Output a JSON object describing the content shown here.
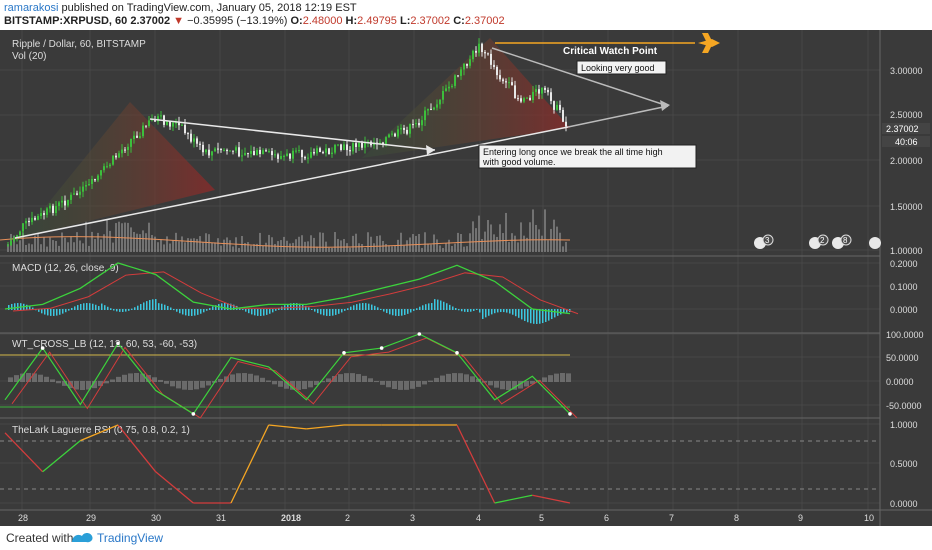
{
  "header": {
    "username": "ramarakosi",
    "published": "published on TradingView.com, January 05, 2018 12:19 EST",
    "symbol": "BITSTAMP:XRPUSD, 60",
    "last": "2.37002",
    "change": "−0.35995 (−13.19%)",
    "o_label": "O:",
    "o_val": "2.48000",
    "h_label": "H:",
    "h_val": "2.49795",
    "l_label": "L:",
    "l_val": "2.37002",
    "c_label": "C:",
    "c_val": "2.37002"
  },
  "pane_titles": {
    "main": "Ripple / Dollar, 60, BITSTAMP",
    "vol": "Vol (20)",
    "macd": "MACD (12, 26, close, 9)",
    "wt": "WT_CROSS_LB (12, 12, 60, 53, -60, -53)",
    "rsi": "TheLark Laguerre RSI (0.75, 0.8, 0.2, 1)"
  },
  "price_scale": {
    "ticks": [
      "3.00000",
      "2.50000",
      "2.00000",
      "1.50000",
      "1.00000"
    ],
    "last_price": "2.37002",
    "countdown": "40:06"
  },
  "macd_scale": {
    "ticks": [
      "0.2000",
      "0.1000",
      "0.0000"
    ]
  },
  "wt_scale": {
    "ticks": [
      "100.0000",
      "50.0000",
      "0.0000",
      "-50.0000"
    ]
  },
  "rsi_scale": {
    "ticks": [
      "1.0000",
      "0.5000",
      "0.0000"
    ]
  },
  "time_axis": {
    "labels": [
      "28",
      "29",
      "30",
      "31",
      "2018",
      "2",
      "3",
      "4",
      "5",
      "6",
      "7",
      "8",
      "9",
      "10"
    ]
  },
  "event_badges": [
    "3",
    "2",
    "8"
  ],
  "annotations": {
    "critical": "Critical Watch Point",
    "looking": "Looking very good",
    "entering_1": "Entering long once we break the all time high",
    "entering_2": "with good volume."
  },
  "colors": {
    "background": "#3a3a3a",
    "up_candle": "#3cbf3c",
    "down_candle": "#e8e8e8",
    "macd_line": "#3cd33c",
    "signal_line": "#d33c3c",
    "histogram": "#3cc8e0",
    "accent_orange": "#f5a623",
    "wt_level": "#d4b84a",
    "rsi_bull": "#3cd33c",
    "rsi_bear": "#d33c3c",
    "trendline": "#e8e8e8"
  },
  "chart_data": {
    "type": "candlestick",
    "symbol": "XRPUSD",
    "interval": "60",
    "y_range": [
      1.0,
      3.3
    ],
    "close_path_x": [
      "27",
      "28",
      "29",
      "29.6",
      "30",
      "30.4",
      "30.8",
      "31",
      "1",
      "2",
      "2.5",
      "3",
      "3.5",
      "4",
      "4.3",
      "4.6",
      "5",
      "5.3"
    ],
    "close_path_y": [
      1.05,
      1.25,
      1.7,
      2.2,
      2.45,
      2.35,
      2.05,
      2.1,
      2.02,
      2.12,
      2.2,
      2.35,
      2.75,
      3.25,
      2.9,
      2.65,
      2.75,
      2.37
    ],
    "macd_values": [
      0.0,
      0.02,
      0.09,
      0.2,
      0.15,
      0.03,
      0.0,
      0.02,
      0.02,
      0.05,
      0.09,
      0.13,
      0.19,
      0.12,
      0.0,
      -0.02
    ],
    "wt_values": [
      -40,
      70,
      -50,
      80,
      -20,
      -70,
      50,
      30,
      -40,
      60,
      70,
      100,
      60,
      -40,
      10,
      -70
    ],
    "laguerre_rsi": [
      0.9,
      0.4,
      0.8,
      1.0,
      0.4,
      0.0,
      0.0,
      1.0,
      0.95,
      1.0,
      1.0,
      1.0,
      1.0,
      0.0,
      0.1,
      0.0
    ]
  }
}
